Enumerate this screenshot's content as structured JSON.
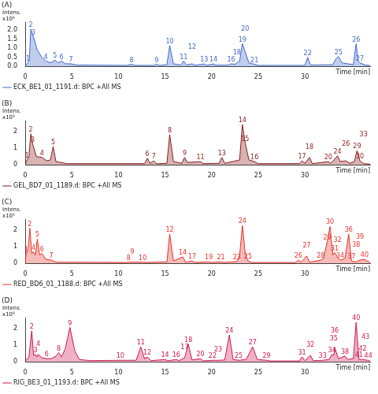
{
  "chart_data": [
    {
      "type": "line",
      "title": "(A)",
      "y_label": "Intens.",
      "y_multiplier": "x10⁵",
      "x_label": "Time [min]",
      "x": [
        0,
        0.3,
        0.45,
        0.6,
        0.9,
        1.3,
        1.8,
        2.2,
        2.7,
        3.2,
        3.5,
        3.9,
        4.3,
        4.9,
        5.5,
        10.9,
        11.4,
        11.8,
        13.8,
        14.1,
        14.4,
        15.2,
        15.5,
        15.9,
        16.7,
        17.0,
        17.3,
        17.9,
        18.2,
        19.2,
        19.5,
        20.2,
        20.5,
        21.8,
        22.1,
        22.5,
        22.7,
        23.0,
        23.3,
        23.6,
        24.0,
        24.6,
        25.0,
        30.0,
        30.3,
        30.6,
        33.0,
        33.3,
        33.6,
        34.0,
        35.2,
        35.5,
        35.7,
        35.9,
        36.5,
        37
      ],
      "series": [
        {
          "name": "ECK_BE1_01_1191.d: BPC +All MS",
          "color": "#4169c9",
          "values": [
            0.05,
            0.2,
            0.4,
            2.05,
            1.6,
            0.9,
            0.5,
            0.3,
            0.2,
            0.35,
            0.2,
            0.3,
            0.15,
            0.15,
            0.08,
            0.06,
            0.12,
            0.06,
            0.06,
            0.12,
            0.06,
            0.1,
            1.15,
            0.15,
            0.08,
            0.3,
            0.08,
            0.15,
            0.07,
            0.14,
            0.07,
            0.14,
            0.07,
            0.08,
            0.15,
            0.12,
            0.2,
            0.3,
            1.25,
            0.8,
            0.2,
            0.12,
            0.06,
            0.06,
            0.5,
            0.08,
            0.1,
            0.4,
            0.55,
            0.2,
            0.1,
            1.25,
            0.3,
            0.2,
            0.08,
            0.05
          ]
        }
      ],
      "peak_labels": [
        null,
        "1",
        null,
        "2",
        "3",
        null,
        null,
        "4",
        null,
        "5",
        null,
        "6",
        null,
        "7",
        null,
        null,
        "8",
        null,
        null,
        "9",
        null,
        null,
        "10",
        null,
        null,
        "11",
        null,
        "12",
        null,
        "13",
        null,
        "14",
        null,
        null,
        "16",
        null,
        "18",
        null,
        "19",
        "20",
        null,
        "21",
        null,
        null,
        "22",
        null,
        null,
        null,
        "25",
        null,
        null,
        "26",
        null,
        "27",
        null,
        null
      ],
      "xlim": [
        0,
        37
      ],
      "xticks": [
        0,
        5,
        10,
        15,
        20,
        25,
        30
      ],
      "ylim": [
        0,
        2.4
      ],
      "yticks": [
        {
          "value": 0,
          "label": "0.0"
        },
        0.5,
        {
          "value": 1,
          "label": "1.0"
        },
        1.5,
        {
          "value": 2,
          "label": "2.0"
        }
      ],
      "grid": false,
      "legend": "lower left"
    },
    {
      "type": "line",
      "title": "(B)",
      "y_label": "Intens.",
      "y_multiplier": "x10⁵",
      "x_label": "Time [min]",
      "x": [
        0,
        0.2,
        0.4,
        0.6,
        0.8,
        1.2,
        1.8,
        2.3,
        2.7,
        3.0,
        3.3,
        4.5,
        12.8,
        13.1,
        13.4,
        13.8,
        14.1,
        15.2,
        15.5,
        15.9,
        16.8,
        17.1,
        17.4,
        18.8,
        19.1,
        20.8,
        21.1,
        21.4,
        23.0,
        23.3,
        23.6,
        24.0,
        24.6,
        25.0,
        29.4,
        29.7,
        30.0,
        30.5,
        30.8,
        32.5,
        32.8,
        33.2,
        33.5,
        33.8,
        34.4,
        34.8,
        35.3,
        35.6,
        35.9,
        36.3,
        37
      ],
      "series": [
        {
          "name": "GEL_BD7_01_1189.d: BPC +All MS",
          "color": "#8b1c1c",
          "values": [
            0.05,
            0.3,
            0.5,
            1.85,
            1.25,
            0.5,
            0.45,
            0.25,
            0.3,
            1.1,
            0.2,
            0.08,
            0.08,
            0.4,
            0.1,
            0.25,
            0.07,
            0.1,
            1.8,
            0.2,
            0.1,
            0.45,
            0.15,
            0.2,
            0.08,
            0.1,
            0.45,
            0.1,
            0.3,
            2.4,
            1.3,
            0.3,
            0.2,
            0.08,
            0.08,
            0.25,
            0.1,
            0.45,
            0.08,
            0.2,
            0.1,
            0.35,
            0.55,
            0.2,
            0.25,
            0.1,
            0.2,
            0.85,
            0.25,
            0.08,
            0.05
          ]
        }
      ],
      "peak_labels": [
        null,
        "1",
        null,
        "2",
        "3",
        null,
        "4",
        null,
        null,
        "5",
        null,
        null,
        null,
        "6",
        null,
        "7",
        null,
        null,
        "8",
        null,
        null,
        "9",
        null,
        "11",
        null,
        null,
        "13",
        null,
        null,
        "14",
        "15",
        null,
        "16",
        null,
        null,
        "17",
        null,
        "18",
        null,
        "20",
        null,
        null,
        "24",
        null,
        "26",
        null,
        null,
        "29",
        "30",
        "33",
        null
      ],
      "xlim": [
        0,
        37
      ],
      "xticks": [
        0,
        5,
        10,
        15,
        20,
        25,
        30
      ],
      "ylim": [
        0,
        2.6
      ],
      "yticks": [
        0,
        1,
        2
      ],
      "grid": false,
      "legend": "lower left"
    },
    {
      "type": "line",
      "title": "(C)",
      "y_label": "Intens.",
      "y_multiplier": "x10⁵",
      "x_label": "Time [min]",
      "x": [
        0,
        0.1,
        0.3,
        0.5,
        0.7,
        0.9,
        1.1,
        1.3,
        1.55,
        1.8,
        2.2,
        2.8,
        3.3,
        10.8,
        11.1,
        11.5,
        12.6,
        13.0,
        15.2,
        15.5,
        15.9,
        16.9,
        17.2,
        17.9,
        18.2,
        19.7,
        20.0,
        21.0,
        21.3,
        22.7,
        23.0,
        23.3,
        23.6,
        23.9,
        24.3,
        29.0,
        29.3,
        29.6,
        30.2,
        30.5,
        31.7,
        32.0,
        32.4,
        32.7,
        33.0,
        33.2,
        33.5,
        33.8,
        34.3,
        34.7,
        35.0,
        35.5,
        35.9,
        36.4,
        37
      ],
      "series": [
        {
          "name": "RED_BD6_01_1188.d: BPC +All MS",
          "color": "#e8332b",
          "values": [
            0.05,
            0.6,
            0.8,
            2.1,
            0.6,
            0.7,
            0.5,
            1.45,
            0.5,
            0.6,
            0.25,
            0.2,
            0.08,
            0.06,
            0.08,
            0.08,
            0.08,
            0.06,
            0.1,
            1.75,
            0.15,
            0.4,
            0.08,
            0.15,
            0.06,
            0.1,
            0.06,
            0.1,
            0.06,
            0.12,
            0.5,
            2.25,
            0.6,
            0.15,
            0.06,
            0.06,
            0.2,
            0.08,
            0.45,
            0.08,
            0.2,
            0.3,
            1.3,
            2.2,
            0.5,
            0.65,
            0.4,
            0.2,
            0.3,
            1.75,
            0.15,
            0.1,
            0.2,
            0.25,
            0.05
          ]
        }
      ],
      "peak_labels": [
        null,
        "1",
        null,
        "2",
        null,
        "4",
        null,
        "5",
        null,
        "6",
        null,
        "7",
        null,
        null,
        "8",
        "9",
        "10",
        null,
        null,
        "12",
        null,
        "14",
        null,
        "17",
        null,
        "19",
        null,
        "21",
        null,
        "23",
        null,
        "24",
        null,
        "25",
        null,
        null,
        "26",
        null,
        "27",
        null,
        "28",
        null,
        "29",
        "30",
        null,
        "31",
        "32",
        "34",
        null,
        "36",
        "37",
        "38",
        "39",
        "40",
        null
      ],
      "xlim": [
        0,
        37
      ],
      "xticks": [
        0,
        5,
        10,
        15,
        20,
        25,
        30
      ],
      "ylim": [
        0,
        2.6
      ],
      "yticks": [
        0,
        1,
        2
      ],
      "grid": false,
      "legend": "lower left"
    },
    {
      "type": "line",
      "title": "(D)",
      "y_label": "Intens.",
      "y_multiplier": "x10⁵",
      "x_label": "Time [min]",
      "x": [
        0,
        0.4,
        0.7,
        0.9,
        1.1,
        1.25,
        1.4,
        1.8,
        2.3,
        2.8,
        3.3,
        3.6,
        3.9,
        4.3,
        4.8,
        5.3,
        5.8,
        7.0,
        10.2,
        11.9,
        12.4,
        12.8,
        13.1,
        13.5,
        15.0,
        15.3,
        16.2,
        16.5,
        17.1,
        17.5,
        17.9,
        18.8,
        19.1,
        20.1,
        20.7,
        21.4,
        21.9,
        22.3,
        22.9,
        23.7,
        24.4,
        24.9,
        25.9,
        26.3,
        29.4,
        29.7,
        30.0,
        30.6,
        30.9,
        31.9,
        32.6,
        32.9,
        33.1,
        33.2,
        33.6,
        34.3,
        34.6,
        35.2,
        35.5,
        35.8,
        36.2,
        36.5,
        36.8,
        37
      ],
      "series": [
        {
          "name": "RIG_BE3_01_1193.d: BPC +All MS",
          "color": "#d0174e",
          "values": [
            0.05,
            0.3,
            1.85,
            0.4,
            0.45,
            0.3,
            0.45,
            0.25,
            0.2,
            0.2,
            0.35,
            0.55,
            0.3,
            0.8,
            2.05,
            0.7,
            0.15,
            0.08,
            0.1,
            0.1,
            0.9,
            0.2,
            0.3,
            0.08,
            0.15,
            0.07,
            0.15,
            0.08,
            0.25,
            1.05,
            0.12,
            0.2,
            0.07,
            0.1,
            0.1,
            0.12,
            1.6,
            0.15,
            0.1,
            0.15,
            0.9,
            0.15,
            0.1,
            0.06,
            0.06,
            0.3,
            0.08,
            0.4,
            0.08,
            0.1,
            0.15,
            0.45,
            0.4,
            0.85,
            0.2,
            0.35,
            0.15,
            0.2,
            2.35,
            0.15,
            0.15,
            0.12,
            0.1,
            0.05
          ]
        }
      ],
      "peak_labels": [
        null,
        null,
        "2",
        null,
        "3",
        null,
        "4",
        null,
        "6",
        null,
        null,
        "8",
        null,
        null,
        "9",
        null,
        null,
        null,
        "10",
        null,
        "11",
        null,
        "12",
        null,
        "14",
        null,
        "16",
        null,
        "17",
        "18",
        null,
        "20",
        null,
        "22",
        "23",
        null,
        "24",
        null,
        "25",
        null,
        "27",
        null,
        "29",
        null,
        null,
        "31",
        null,
        "32",
        null,
        "33",
        null,
        "34",
        "35",
        "36",
        null,
        "38",
        null,
        null,
        "40",
        "41",
        "42",
        "43",
        "44",
        null
      ],
      "xlim": [
        0,
        37
      ],
      "xticks": [
        0,
        5,
        10,
        15,
        20,
        25,
        30
      ],
      "ylim": [
        0,
        2.6
      ],
      "yticks": [
        0,
        1,
        2
      ],
      "grid": false,
      "legend": "lower left"
    }
  ]
}
